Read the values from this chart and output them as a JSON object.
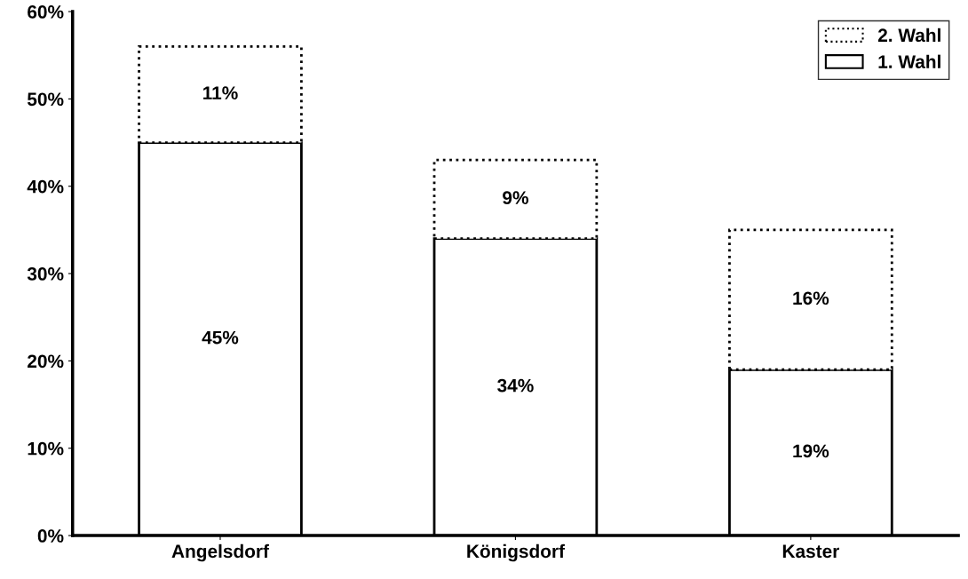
{
  "chart_data": {
    "type": "bar",
    "stacked": true,
    "categories": [
      "Angelsdorf",
      "Königsdorf",
      "Kaster"
    ],
    "series": [
      {
        "name": "1. Wahl",
        "color": "#ffffff",
        "line_style": "solid",
        "values": [
          45,
          34,
          19
        ],
        "value_labels": [
          "45%",
          "34%",
          "19%"
        ]
      },
      {
        "name": "2. Wahl",
        "color": "#ffffff",
        "line_style": "dotted",
        "values": [
          11,
          9,
          16
        ],
        "value_labels": [
          "11%",
          "9%",
          "16%"
        ]
      }
    ],
    "ylim": [
      0,
      60
    ],
    "yticks": [
      {
        "value": 0,
        "label": "0%"
      },
      {
        "value": 10,
        "label": "10%"
      },
      {
        "value": 20,
        "label": "20%"
      },
      {
        "value": 30,
        "label": "30%"
      },
      {
        "value": 40,
        "label": "40%"
      },
      {
        "value": 50,
        "label": "50%"
      },
      {
        "value": 60,
        "label": "60%"
      }
    ],
    "grid": false,
    "legend": "top right"
  }
}
